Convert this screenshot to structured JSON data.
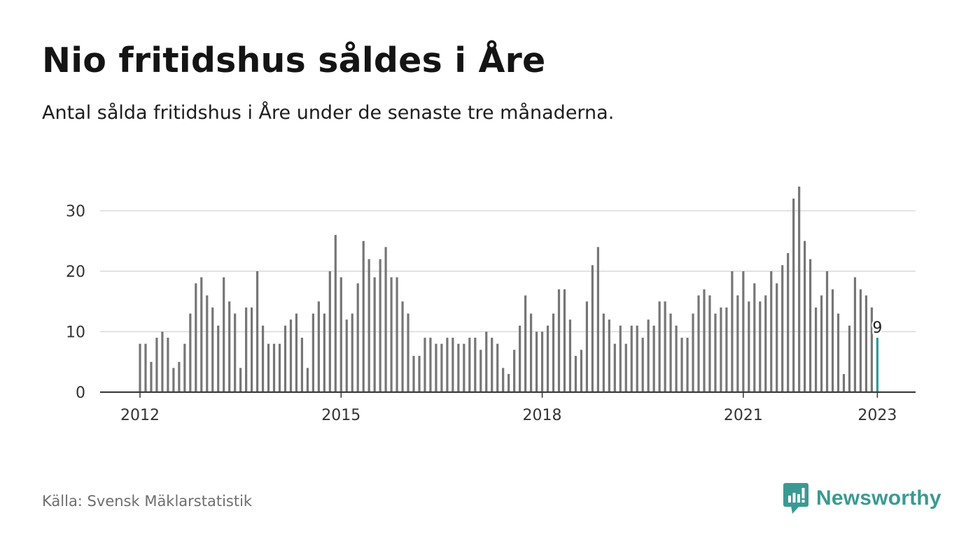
{
  "header": {
    "title": "Nio fritidshus såldes i Åre",
    "subtitle": "Antal sålda fritidshus i Åre under de senaste tre månaderna."
  },
  "footer": {
    "source": "Källa: Svensk Mäklarstatistik",
    "brand": "Newsworthy",
    "brand_icon": "bar-chart-speech-bubble-icon"
  },
  "colors": {
    "bar": "#767676",
    "highlight": "#2a9d96",
    "grid": "#d9d9d9",
    "axis": "#333333",
    "brand": "#3a9a93"
  },
  "chart_data": {
    "type": "bar",
    "title": "Nio fritidshus såldes i Åre",
    "subtitle": "Antal sålda fritidshus i Åre under de senaste tre månaderna.",
    "xlabel": "",
    "ylabel": "",
    "ylim": [
      0,
      35
    ],
    "yticks": [
      0,
      10,
      20,
      30
    ],
    "xtick_labels": [
      "2012",
      "2015",
      "2018",
      "2021",
      "2023"
    ],
    "grid": true,
    "legend": "none",
    "series": [
      {
        "values": [
          8,
          8,
          5,
          9,
          10,
          9,
          4,
          5,
          8,
          13,
          18,
          19,
          16,
          14,
          11,
          19,
          15,
          13,
          4,
          14,
          14,
          20,
          11,
          8,
          8,
          8,
          11,
          12,
          13,
          9,
          4,
          13,
          15,
          13,
          20,
          26,
          19,
          12,
          13,
          18,
          25,
          22,
          19,
          22,
          24,
          19,
          19,
          15,
          13,
          6,
          6,
          9,
          9,
          8,
          8,
          9,
          9,
          8,
          8,
          9,
          9,
          7,
          10,
          9,
          8,
          4,
          3,
          7,
          11,
          16,
          13,
          10,
          10,
          11,
          13,
          17,
          17,
          12,
          6,
          7,
          15,
          21,
          24,
          13,
          12,
          8,
          11,
          8,
          11,
          11,
          9,
          12,
          11,
          15,
          15,
          13,
          11,
          9,
          9,
          13,
          16,
          17,
          16,
          13,
          14,
          14,
          20,
          16,
          20,
          15,
          18,
          15,
          16,
          20,
          18,
          21,
          23,
          32,
          34,
          25,
          22,
          14,
          16,
          20,
          17,
          13,
          3,
          11,
          19,
          17,
          16,
          14,
          9
        ]
      }
    ],
    "annotation": {
      "label": "9",
      "value": 9
    }
  }
}
